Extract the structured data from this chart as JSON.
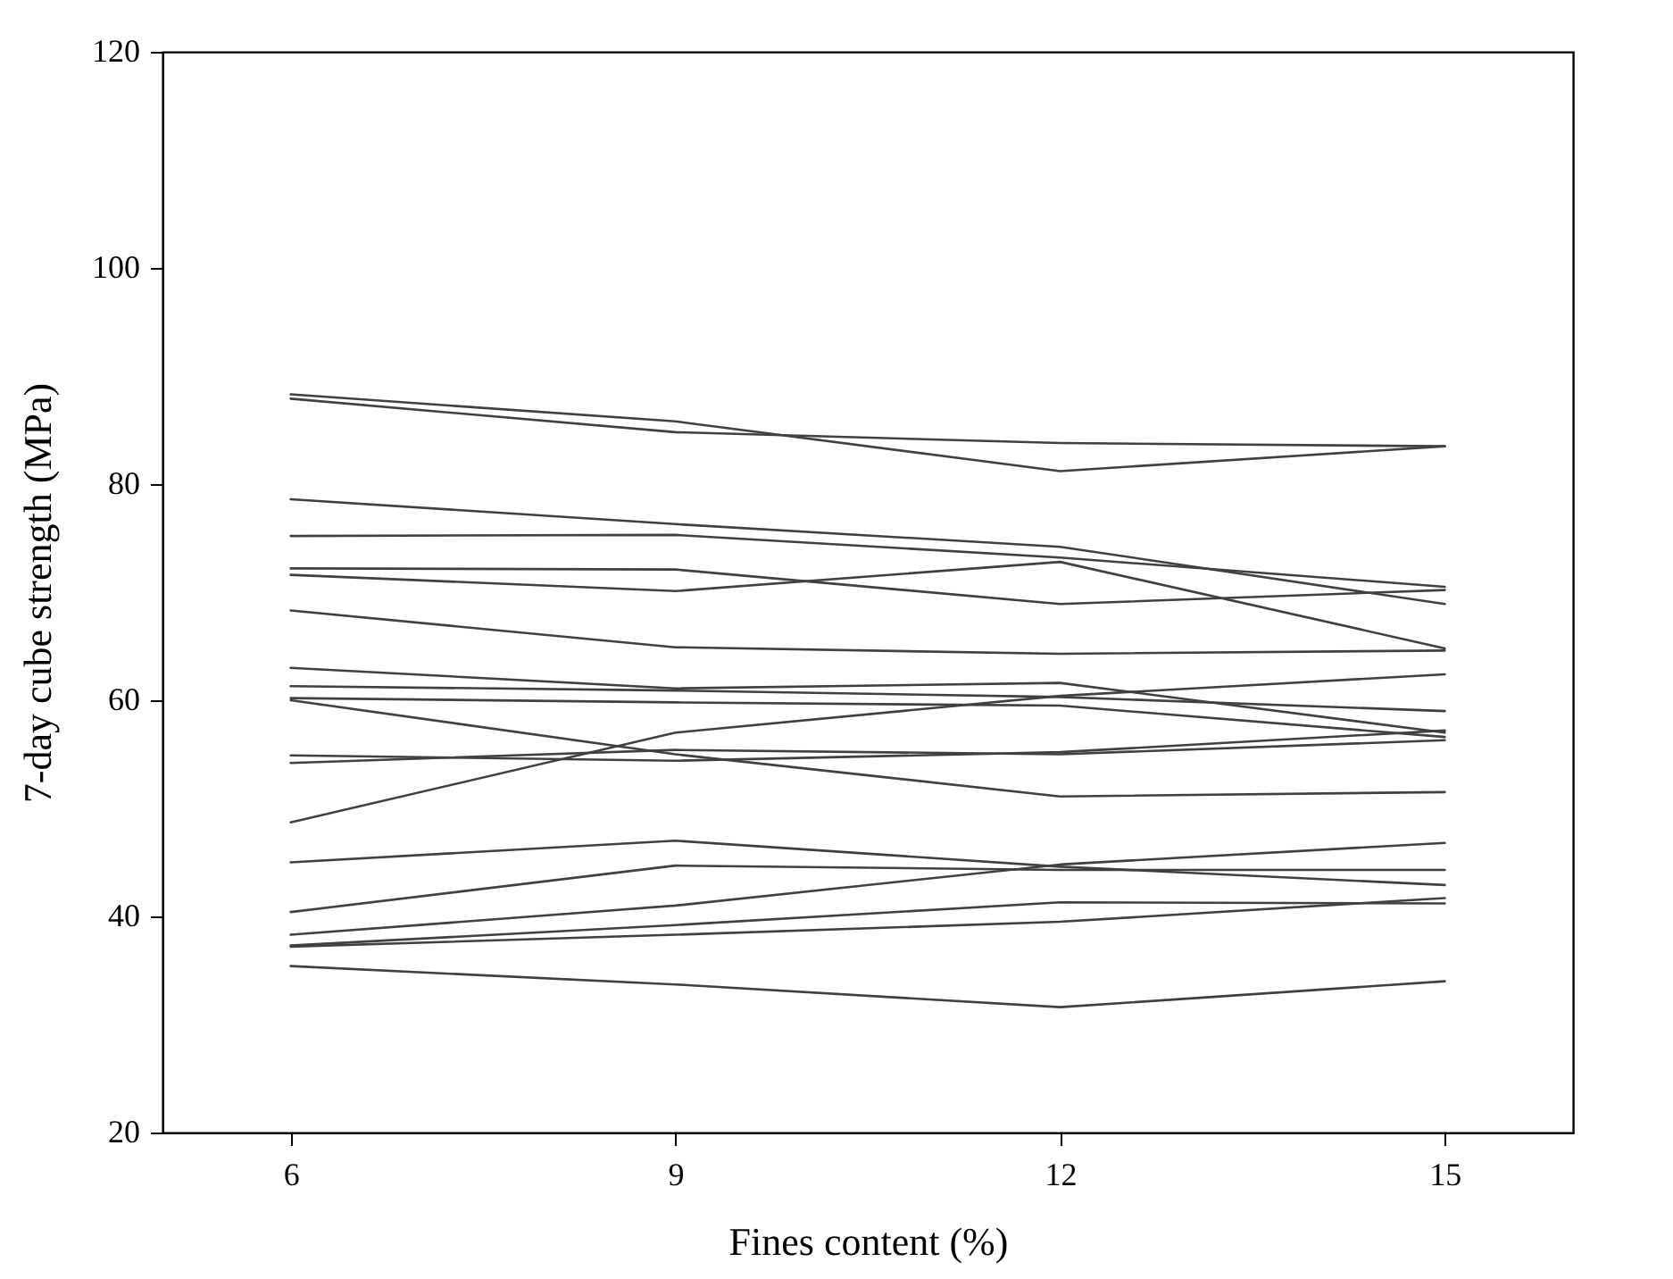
{
  "chart_data": {
    "type": "line",
    "xlabel": "Fines content (%)",
    "ylabel": "7-day cube strength (MPa)",
    "x": [
      6,
      9,
      12,
      15
    ],
    "xlim": [
      5,
      16
    ],
    "xticks": [
      6,
      9,
      12,
      15
    ],
    "ylim": [
      20,
      120
    ],
    "yticks": [
      20,
      40,
      60,
      80,
      100,
      120
    ],
    "grid": false,
    "legend": false,
    "marker": "none",
    "line_style": "solid",
    "series": [
      {
        "color": "#404040",
        "values": [
          88.3,
          85.8,
          81.2,
          83.5
        ]
      },
      {
        "color": "#404040",
        "values": [
          87.9,
          84.8,
          83.8,
          83.5
        ]
      },
      {
        "color": "#404040",
        "values": [
          78.6,
          76.3,
          74.2,
          68.9
        ]
      },
      {
        "color": "#404040",
        "values": [
          75.2,
          75.3,
          73.2,
          70.5
        ]
      },
      {
        "color": "#404040",
        "values": [
          72.2,
          72.1,
          68.9,
          70.2
        ]
      },
      {
        "color": "#404040",
        "values": [
          71.6,
          70.1,
          72.8,
          64.8
        ]
      },
      {
        "color": "#404040",
        "values": [
          68.3,
          64.9,
          64.3,
          64.6
        ]
      },
      {
        "color": "#404040",
        "values": [
          63.0,
          61.1,
          61.6,
          57.0
        ]
      },
      {
        "color": "#404040",
        "values": [
          61.3,
          60.9,
          60.3,
          59.0
        ]
      },
      {
        "color": "#404040",
        "values": [
          60.2,
          59.8,
          59.5,
          56.6
        ]
      },
      {
        "color": "#404040",
        "values": [
          60.0,
          55.0,
          51.1,
          51.5
        ]
      },
      {
        "color": "#404040",
        "values": [
          54.9,
          54.4,
          55.2,
          57.2
        ]
      },
      {
        "color": "#404040",
        "values": [
          54.2,
          55.4,
          55.0,
          56.3
        ]
      },
      {
        "color": "#404040",
        "values": [
          48.7,
          57.0,
          60.4,
          62.4
        ]
      },
      {
        "color": "#404040",
        "values": [
          45.0,
          47.0,
          44.6,
          42.9
        ]
      },
      {
        "color": "#404040",
        "values": [
          40.4,
          44.7,
          44.3,
          44.3
        ]
      },
      {
        "color": "#404040",
        "values": [
          38.3,
          41.0,
          44.8,
          46.8
        ]
      },
      {
        "color": "#404040",
        "values": [
          37.3,
          39.2,
          41.3,
          41.2
        ]
      },
      {
        "color": "#404040",
        "values": [
          37.2,
          38.3,
          39.5,
          41.7
        ]
      },
      {
        "color": "#404040",
        "values": [
          35.4,
          33.7,
          31.6,
          34.0
        ]
      }
    ]
  }
}
